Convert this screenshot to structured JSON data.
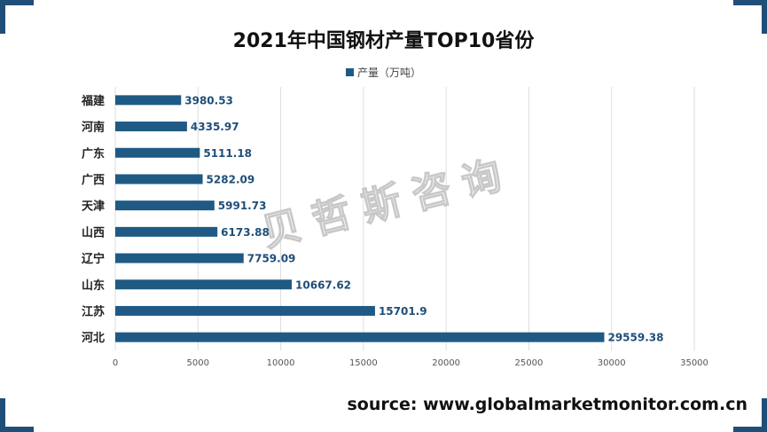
{
  "page": {
    "title": "2021年中国钢材产量TOP10省份",
    "source": "source: www.globalmarketmonitor.com.cn",
    "watermark": "贝哲斯咨询",
    "accent_color": "#1f4e79"
  },
  "chart_data": {
    "type": "bar",
    "orientation": "horizontal",
    "title": "2021年中国钢材产量TOP10省份",
    "legend": {
      "position": "top",
      "entries": [
        "产量（万吨）"
      ]
    },
    "categories": [
      "福建",
      "河南",
      "广东",
      "广西",
      "天津",
      "山西",
      "辽宁",
      "山东",
      "江苏",
      "河北"
    ],
    "series": [
      {
        "name": "产量（万吨）",
        "color": "#1f5a85",
        "values": [
          3980.53,
          4335.97,
          5111.18,
          5282.09,
          5991.73,
          6173.88,
          7759.09,
          10667.62,
          15701.9,
          29559.38
        ],
        "labels": [
          "3980.53",
          "4335.97",
          "5111.18",
          "5282.09",
          "5991.73",
          "6173.88",
          "7759.09",
          "10667.62",
          "15701.9",
          "29559.38"
        ]
      }
    ],
    "xlim": [
      0,
      35000
    ],
    "x_ticks": [
      0,
      5000,
      10000,
      15000,
      20000,
      25000,
      30000,
      35000
    ],
    "x_tick_labels": [
      "0",
      "5000",
      "10000",
      "15000",
      "20000",
      "25000",
      "30000",
      "35000"
    ],
    "grid": "vertical"
  }
}
